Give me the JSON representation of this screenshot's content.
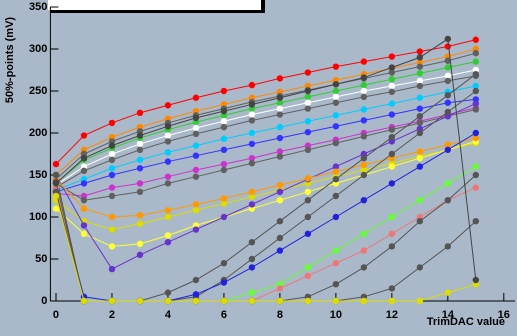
{
  "chart_data": {
    "type": "line",
    "x_label": "TrimDAC value",
    "y_label": "50%-points (mV)",
    "x": [
      0,
      1,
      2,
      3,
      4,
      5,
      6,
      7,
      8,
      9,
      10,
      11,
      12,
      13,
      14,
      15
    ],
    "xlim": [
      -0.2,
      16.4
    ],
    "xticks": [
      0,
      2,
      4,
      6,
      8,
      10,
      12,
      14,
      16
    ],
    "ylim": [
      0,
      350
    ],
    "yticks": [
      0,
      50,
      100,
      150,
      200,
      250,
      300,
      350
    ],
    "series": [
      {
        "color": "#ff0000",
        "values": [
          163,
          197,
          212,
          224,
          233,
          242,
          250,
          257,
          265,
          272,
          279,
          285,
          291,
          297,
          303,
          311
        ]
      },
      {
        "color": "#ff8800",
        "values": [
          150,
          180,
          195,
          207,
          217,
          226,
          234,
          242,
          249,
          256,
          263,
          270,
          277,
          284,
          291,
          300
        ]
      },
      {
        "color": "#606060",
        "values": [
          145,
          175,
          190,
          202,
          212,
          221,
          229,
          237,
          244,
          251,
          258,
          265,
          272,
          279,
          286,
          295
        ]
      },
      {
        "color": "#33cc33",
        "values": [
          140,
          168,
          182,
          194,
          204,
          213,
          221,
          229,
          236,
          243,
          250,
          257,
          264,
          271,
          278,
          285
        ]
      },
      {
        "color": "#ffffff",
        "values": [
          138,
          160,
          175,
          187,
          197,
          206,
          214,
          222,
          229,
          236,
          243,
          250,
          256,
          262,
          268,
          275
        ]
      },
      {
        "color": "#606060",
        "values": [
          135,
          155,
          168,
          180,
          190,
          199,
          207,
          215,
          222,
          229,
          236,
          243,
          249,
          256,
          262,
          268
        ]
      },
      {
        "color": "#00ccff",
        "values": [
          132,
          145,
          158,
          168,
          177,
          185,
          193,
          200,
          207,
          214,
          221,
          228,
          235,
          242,
          249,
          256
        ]
      },
      {
        "color": "#3333ff",
        "values": [
          130,
          140,
          150,
          158,
          166,
          173,
          180,
          187,
          194,
          201,
          208,
          215,
          222,
          229,
          236,
          240
        ]
      },
      {
        "color": "#cc33cc",
        "values": [
          128,
          125,
          135,
          140,
          148,
          156,
          163,
          170,
          178,
          185,
          192,
          200,
          207,
          214,
          222,
          230
        ]
      },
      {
        "color": "#606060",
        "values": [
          140,
          120,
          125,
          130,
          140,
          148,
          156,
          164,
          172,
          180,
          188,
          196,
          204,
          212,
          220,
          228
        ]
      },
      {
        "color": "#dddd00",
        "values": [
          120,
          95,
          85,
          92,
          100,
          108,
          116,
          124,
          132,
          140,
          148,
          156,
          164,
          172,
          180,
          188
        ]
      },
      {
        "color": "#ffff33",
        "values": [
          110,
          80,
          65,
          68,
          78,
          90,
          100,
          110,
          120,
          130,
          140,
          150,
          160,
          170,
          180,
          190
        ]
      },
      {
        "color": "#6633cc",
        "values": [
          150,
          90,
          38,
          55,
          70,
          85,
          100,
          115,
          130,
          145,
          160,
          175,
          190,
          205,
          220,
          235
        ]
      },
      {
        "color": "#ff9900",
        "values": [
          145,
          110,
          100,
          102,
          108,
          115,
          122,
          130,
          138,
          146,
          154,
          162,
          170,
          178,
          186,
          194
        ]
      },
      {
        "color": "#555555",
        "values": [
          150,
          0,
          0,
          0,
          10,
          25,
          45,
          70,
          95,
          120,
          145,
          170,
          195,
          220,
          245,
          270
        ]
      },
      {
        "color": "#555555",
        "values": [
          140,
          0,
          0,
          0,
          0,
          5,
          25,
          50,
          75,
          100,
          125,
          150,
          175,
          200,
          225,
          250
        ]
      },
      {
        "color": "#2222dd",
        "values": [
          130,
          5,
          0,
          0,
          0,
          8,
          22,
          40,
          60,
          80,
          100,
          120,
          140,
          160,
          180,
          200
        ]
      },
      {
        "color": "#66ff33",
        "values": [
          138,
          0,
          0,
          0,
          0,
          0,
          0,
          10,
          20,
          40,
          60,
          80,
          100,
          120,
          140,
          160
        ]
      },
      {
        "color": "#ee7777",
        "values": [
          135,
          0,
          0,
          0,
          0,
          0,
          0,
          0,
          15,
          30,
          45,
          60,
          80,
          100,
          120,
          135
        ]
      },
      {
        "color": "#555555",
        "values": [
          142,
          0,
          0,
          0,
          0,
          0,
          0,
          0,
          0,
          5,
          20,
          40,
          65,
          95,
          120,
          150
        ]
      },
      {
        "color": "#555555",
        "values": [
          130,
          0,
          0,
          0,
          0,
          0,
          0,
          0,
          0,
          0,
          0,
          5,
          15,
          40,
          65,
          95
        ]
      },
      {
        "color": "#dddd00",
        "values": [
          125,
          0,
          0,
          0,
          0,
          0,
          0,
          0,
          0,
          0,
          0,
          0,
          0,
          0,
          10,
          20
        ]
      },
      {
        "color": "#444444",
        "values": [
          140,
          170,
          185,
          197,
          208,
          218,
          226,
          234,
          242,
          250,
          258,
          266,
          278,
          290,
          312,
          25
        ]
      }
    ]
  }
}
